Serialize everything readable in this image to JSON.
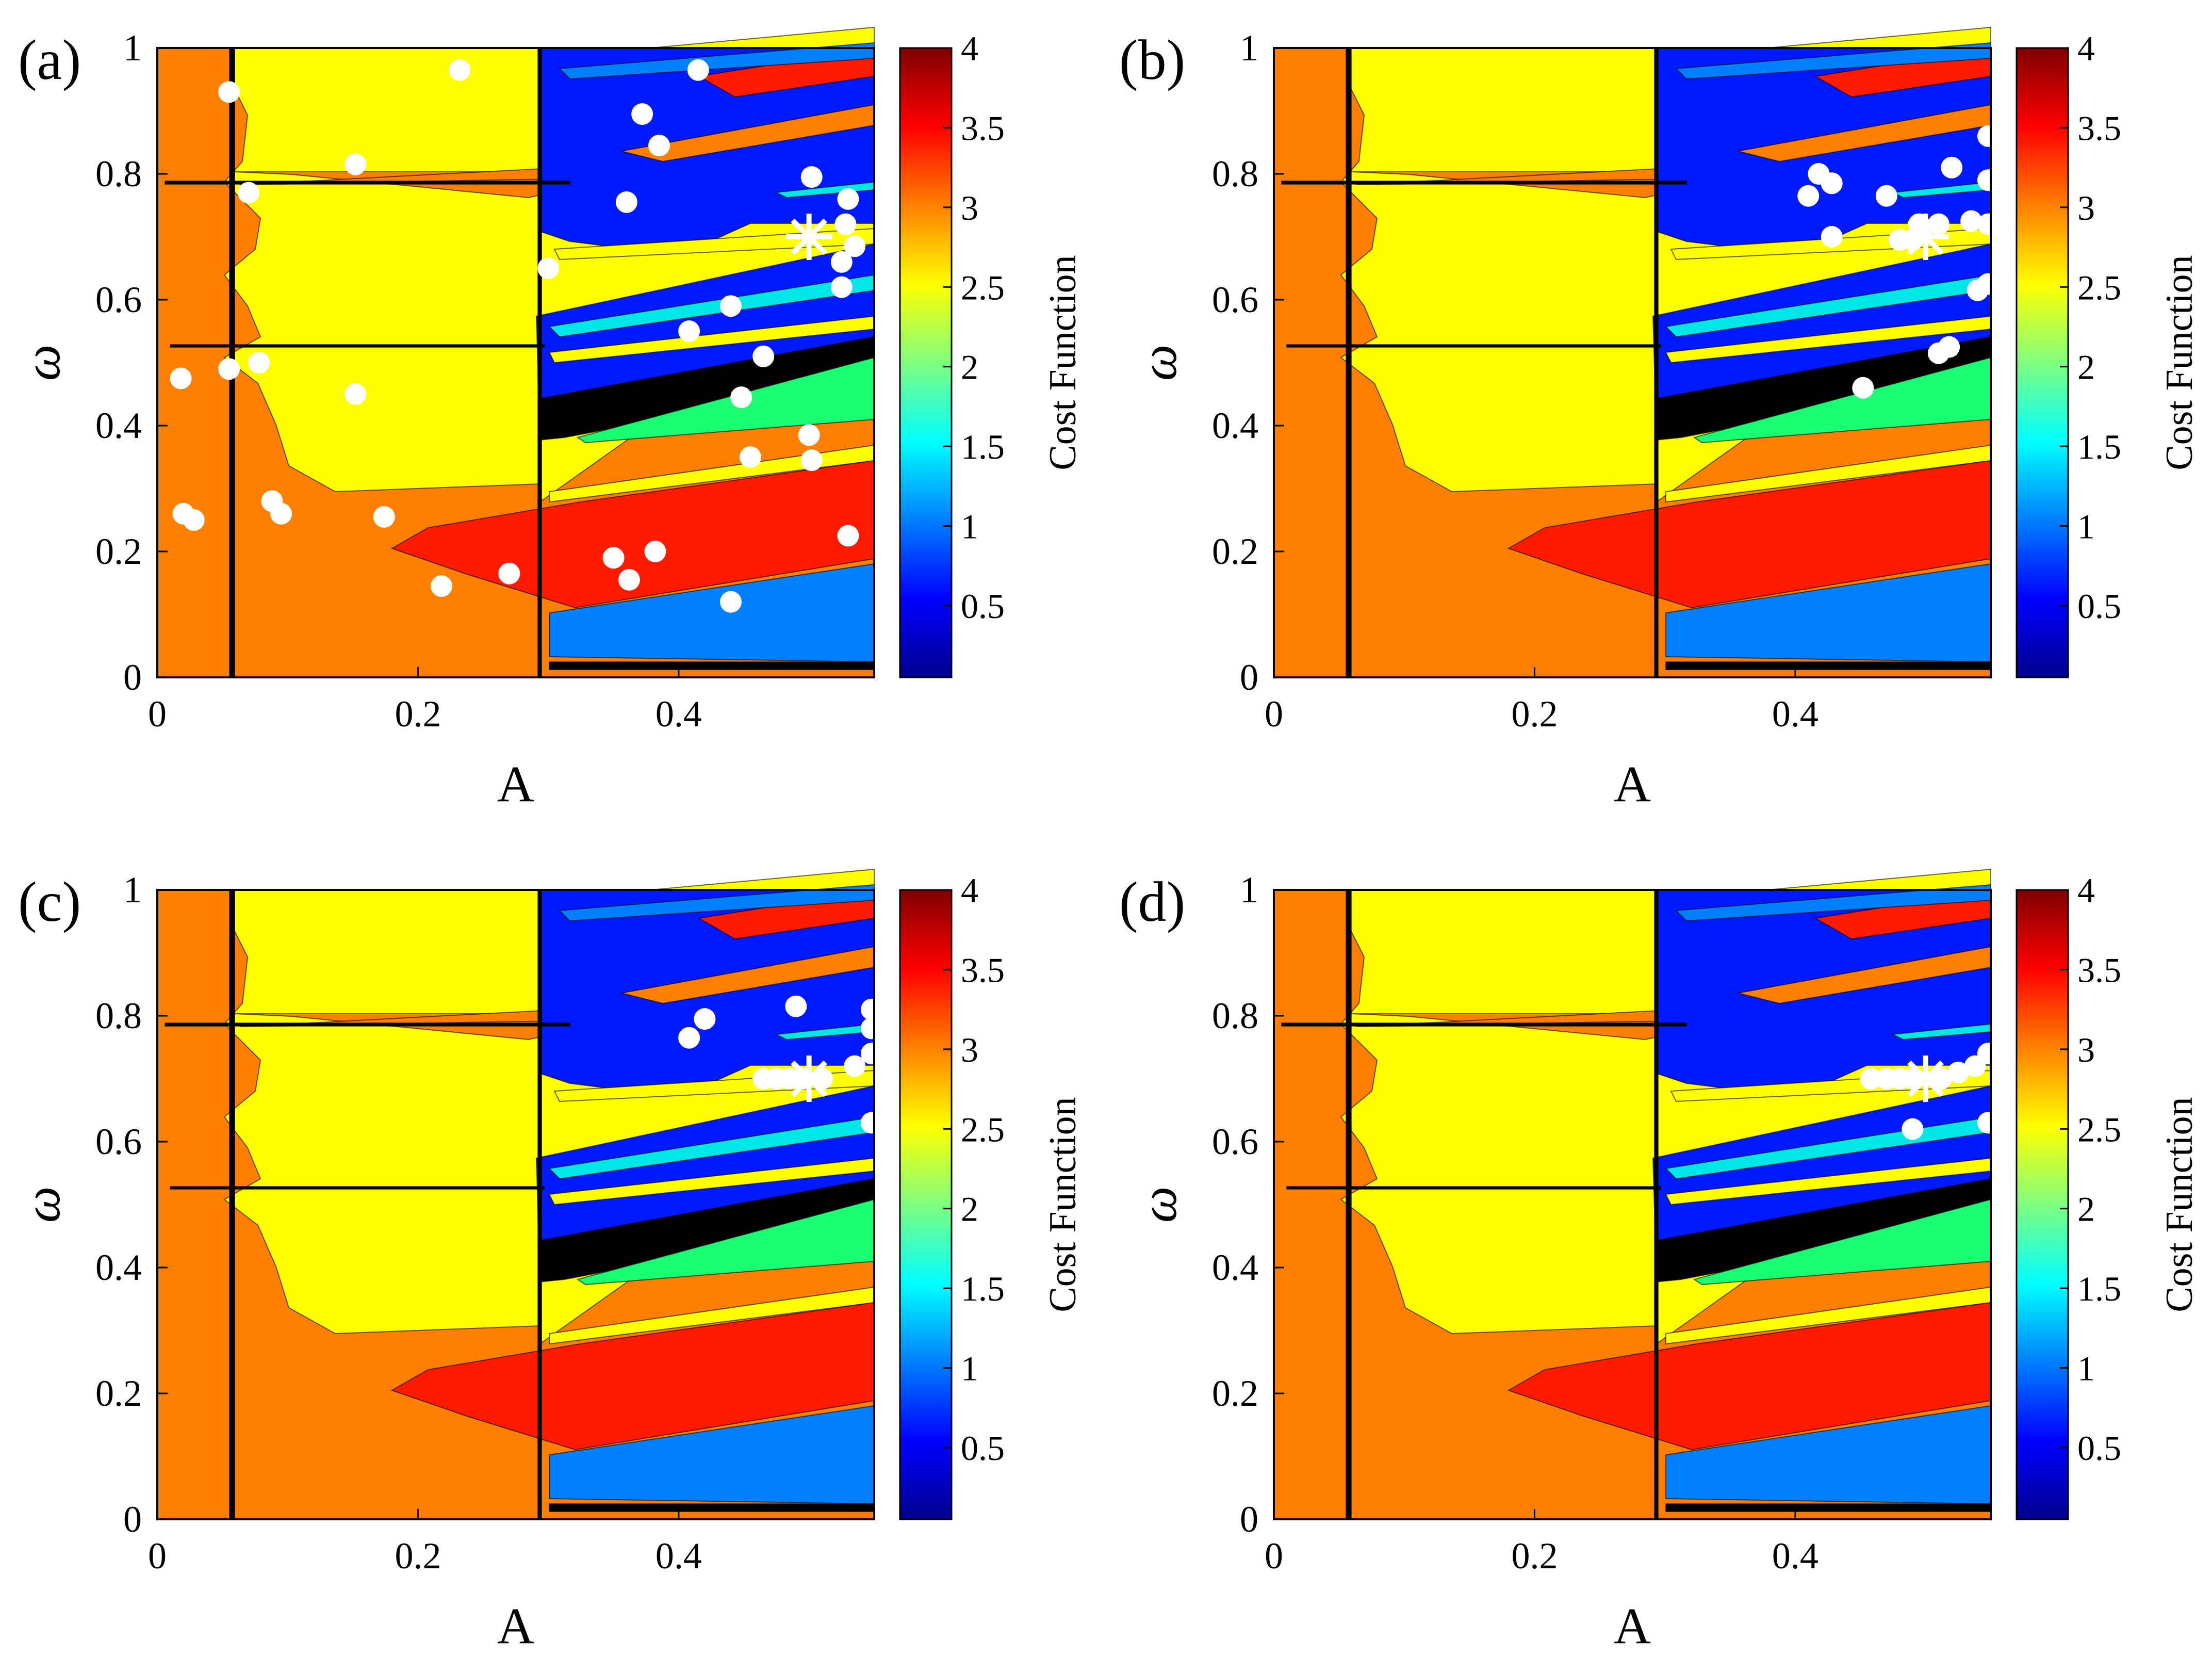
{
  "chart_data": [
    {
      "panel_label": "(a)",
      "type": "heatmap",
      "xlabel": "A",
      "ylabel": "ω",
      "xlim": [
        0,
        0.55
      ],
      "ylim": [
        0,
        1
      ],
      "xticks": [
        "0",
        "0.2",
        "0.4"
      ],
      "yticks": [
        "0",
        "0.2",
        "0.4",
        "0.6",
        "0.8",
        "1"
      ],
      "colorbar": {
        "label": "Cost Function",
        "range": [
          0.05,
          4
        ],
        "ticks": [
          "0.5",
          "1",
          "1.5",
          "2",
          "2.5",
          "3",
          "3.5",
          "4"
        ]
      },
      "optimum": {
        "A": 0.5,
        "w": 0.7
      },
      "points": [
        [
          0.018,
          0.475
        ],
        [
          0.055,
          0.93
        ],
        [
          0.055,
          0.49
        ],
        [
          0.07,
          0.77
        ],
        [
          0.078,
          0.5
        ],
        [
          0.02,
          0.26
        ],
        [
          0.028,
          0.25
        ],
        [
          0.088,
          0.28
        ],
        [
          0.095,
          0.26
        ],
        [
          0.152,
          0.815
        ],
        [
          0.152,
          0.45
        ],
        [
          0.174,
          0.255
        ],
        [
          0.218,
          0.145
        ],
        [
          0.232,
          0.965
        ],
        [
          0.27,
          0.165
        ],
        [
          0.3,
          0.65
        ],
        [
          0.36,
          0.755
        ],
        [
          0.372,
          0.895
        ],
        [
          0.385,
          0.845
        ],
        [
          0.415,
          0.965
        ],
        [
          0.35,
          0.19
        ],
        [
          0.362,
          0.155
        ],
        [
          0.382,
          0.2
        ],
        [
          0.408,
          0.55
        ],
        [
          0.44,
          0.12
        ],
        [
          0.44,
          0.59
        ],
        [
          0.448,
          0.445
        ],
        [
          0.455,
          0.35
        ],
        [
          0.465,
          0.51
        ],
        [
          0.5,
          0.385
        ],
        [
          0.502,
          0.345
        ],
        [
          0.502,
          0.795
        ],
        [
          0.53,
          0.76
        ],
        [
          0.528,
          0.72
        ],
        [
          0.535,
          0.685
        ],
        [
          0.525,
          0.66
        ],
        [
          0.525,
          0.62
        ],
        [
          0.53,
          0.225
        ]
      ]
    },
    {
      "panel_label": "(b)",
      "type": "heatmap",
      "xlabel": "A",
      "ylabel": "ω",
      "xlim": [
        0,
        0.55
      ],
      "ylim": [
        0,
        1
      ],
      "xticks": [
        "0",
        "0.2",
        "0.4"
      ],
      "yticks": [
        "0",
        "0.2",
        "0.4",
        "0.6",
        "0.8",
        "1"
      ],
      "colorbar": {
        "label": "Cost Function",
        "range": [
          0.05,
          4
        ],
        "ticks": [
          "0.5",
          "1",
          "1.5",
          "2",
          "2.5",
          "3",
          "3.5",
          "4"
        ]
      },
      "optimum": {
        "A": 0.5,
        "w": 0.7
      },
      "points": [
        [
          0.41,
          0.765
        ],
        [
          0.418,
          0.8
        ],
        [
          0.428,
          0.785
        ],
        [
          0.428,
          0.7
        ],
        [
          0.47,
          0.765
        ],
        [
          0.48,
          0.695
        ],
        [
          0.49,
          0.695
        ],
        [
          0.495,
          0.72
        ],
        [
          0.51,
          0.72
        ],
        [
          0.52,
          0.81
        ],
        [
          0.535,
          0.725
        ],
        [
          0.548,
          0.86
        ],
        [
          0.548,
          0.79
        ],
        [
          0.548,
          0.72
        ],
        [
          0.54,
          0.615
        ],
        [
          0.548,
          0.625
        ],
        [
          0.51,
          0.515
        ],
        [
          0.518,
          0.525
        ],
        [
          0.452,
          0.46
        ]
      ]
    },
    {
      "panel_label": "(c)",
      "type": "heatmap",
      "xlabel": "A",
      "ylabel": "ω",
      "xlim": [
        0,
        0.55
      ],
      "ylim": [
        0,
        1
      ],
      "xticks": [
        "0",
        "0.2",
        "0.4"
      ],
      "yticks": [
        "0",
        "0.2",
        "0.4",
        "0.6",
        "0.8",
        "1"
      ],
      "colorbar": {
        "label": "Cost Function",
        "range": [
          0.05,
          4
        ],
        "ticks": [
          "0.5",
          "1",
          "1.5",
          "2",
          "2.5",
          "3",
          "3.5",
          "4"
        ]
      },
      "optimum": {
        "A": 0.5,
        "w": 0.7
      },
      "points": [
        [
          0.408,
          0.765
        ],
        [
          0.42,
          0.795
        ],
        [
          0.49,
          0.815
        ],
        [
          0.465,
          0.7
        ],
        [
          0.475,
          0.7
        ],
        [
          0.485,
          0.7
        ],
        [
          0.495,
          0.7
        ],
        [
          0.51,
          0.7
        ],
        [
          0.535,
          0.72
        ],
        [
          0.548,
          0.74
        ],
        [
          0.548,
          0.78
        ],
        [
          0.548,
          0.81
        ],
        [
          0.548,
          0.63
        ]
      ]
    },
    {
      "panel_label": "(d)",
      "type": "heatmap",
      "xlabel": "A",
      "ylabel": "ω",
      "xlim": [
        0,
        0.55
      ],
      "ylim": [
        0,
        1
      ],
      "xticks": [
        "0",
        "0.2",
        "0.4"
      ],
      "yticks": [
        "0",
        "0.2",
        "0.4",
        "0.6",
        "0.8",
        "1"
      ],
      "colorbar": {
        "label": "Cost Function",
        "range": [
          0.05,
          4
        ],
        "ticks": [
          "0.5",
          "1",
          "1.5",
          "2",
          "2.5",
          "3",
          "3.5",
          "4"
        ]
      },
      "optimum": {
        "A": 0.5,
        "w": 0.7
      },
      "points": [
        [
          0.458,
          0.7
        ],
        [
          0.47,
          0.7
        ],
        [
          0.48,
          0.7
        ],
        [
          0.49,
          0.7
        ],
        [
          0.512,
          0.7
        ],
        [
          0.525,
          0.71
        ],
        [
          0.538,
          0.72
        ],
        [
          0.548,
          0.74
        ],
        [
          0.49,
          0.62
        ],
        [
          0.548,
          0.63
        ]
      ]
    }
  ]
}
